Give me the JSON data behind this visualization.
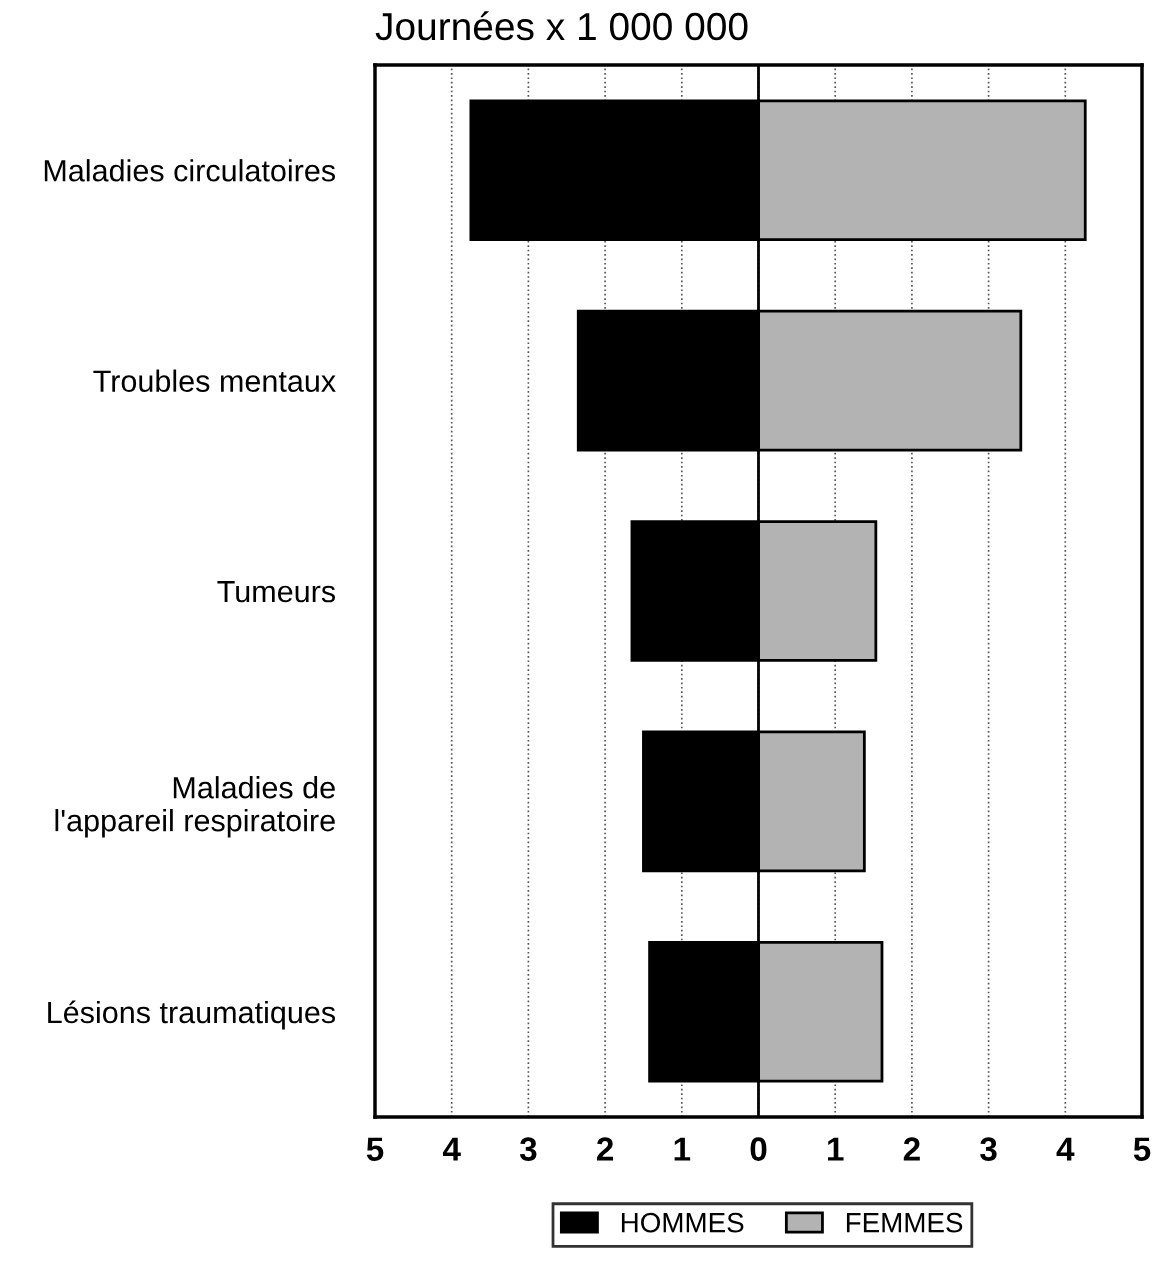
{
  "chart_data": {
    "type": "bar",
    "orientation": "horizontal",
    "stacked": true,
    "title": "Journées x 1 000 000",
    "categories": [
      "Maladies circulatoires",
      "Troubles mentaux",
      "Tumeurs",
      "Maladies de\nl'appareil respiratoire",
      "Lésions traumatiques"
    ],
    "series": [
      {
        "name": "HOMMES",
        "color": "#000000",
        "values": [
          -3.75,
          -2.35,
          -1.65,
          -1.5,
          -1.42
        ]
      },
      {
        "name": "FEMMES",
        "color": "#b3b3b3",
        "values": [
          4.26,
          3.42,
          1.53,
          1.38,
          1.61
        ]
      }
    ],
    "xlim": [
      -5,
      5
    ],
    "xticks": [
      {
        "value": -5,
        "label": "5"
      },
      {
        "value": -4,
        "label": "4"
      },
      {
        "value": -3,
        "label": "3"
      },
      {
        "value": -2,
        "label": "2"
      },
      {
        "value": -1,
        "label": "1"
      },
      0,
      1,
      2,
      3,
      4,
      5
    ],
    "ref_lines": [
      {
        "axis": "x",
        "value": 0,
        "color": "#000000",
        "line_style": "solid"
      }
    ],
    "grid": "x",
    "legend": "bottom"
  }
}
